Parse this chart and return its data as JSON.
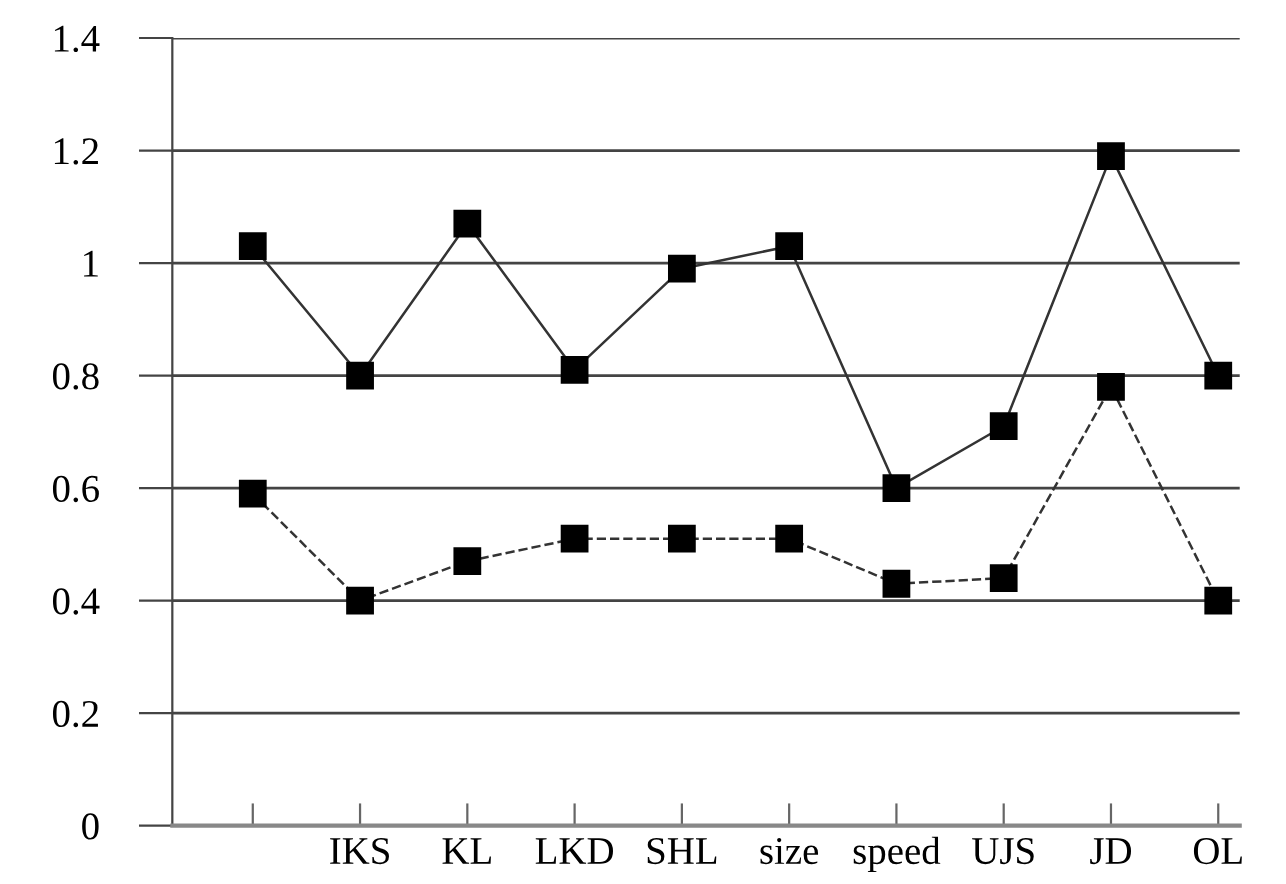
{
  "chart_data": {
    "type": "line",
    "categories": [
      null,
      "IKS",
      "KL",
      "LKD",
      "SHL",
      "size",
      "speed",
      "UJS",
      "JD",
      "OL"
    ],
    "series": [
      {
        "color": "#000000",
        "line_style": "solid",
        "values": [
          1.03,
          0.8,
          1.07,
          0.81,
          0.99,
          1.03,
          0.6,
          0.71,
          1.19,
          0.8
        ]
      },
      {
        "color": "#000000",
        "line_style": "dashed",
        "values": [
          0.59,
          0.4,
          0.47,
          0.51,
          0.51,
          0.51,
          0.43,
          0.44,
          0.78,
          0.4
        ]
      }
    ],
    "ylim": [
      0,
      1.4
    ],
    "yticks": [
      0,
      0.2,
      0.4,
      0.6,
      0.8,
      1,
      1.2,
      1.4
    ],
    "grid": "y",
    "marker": "square"
  }
}
